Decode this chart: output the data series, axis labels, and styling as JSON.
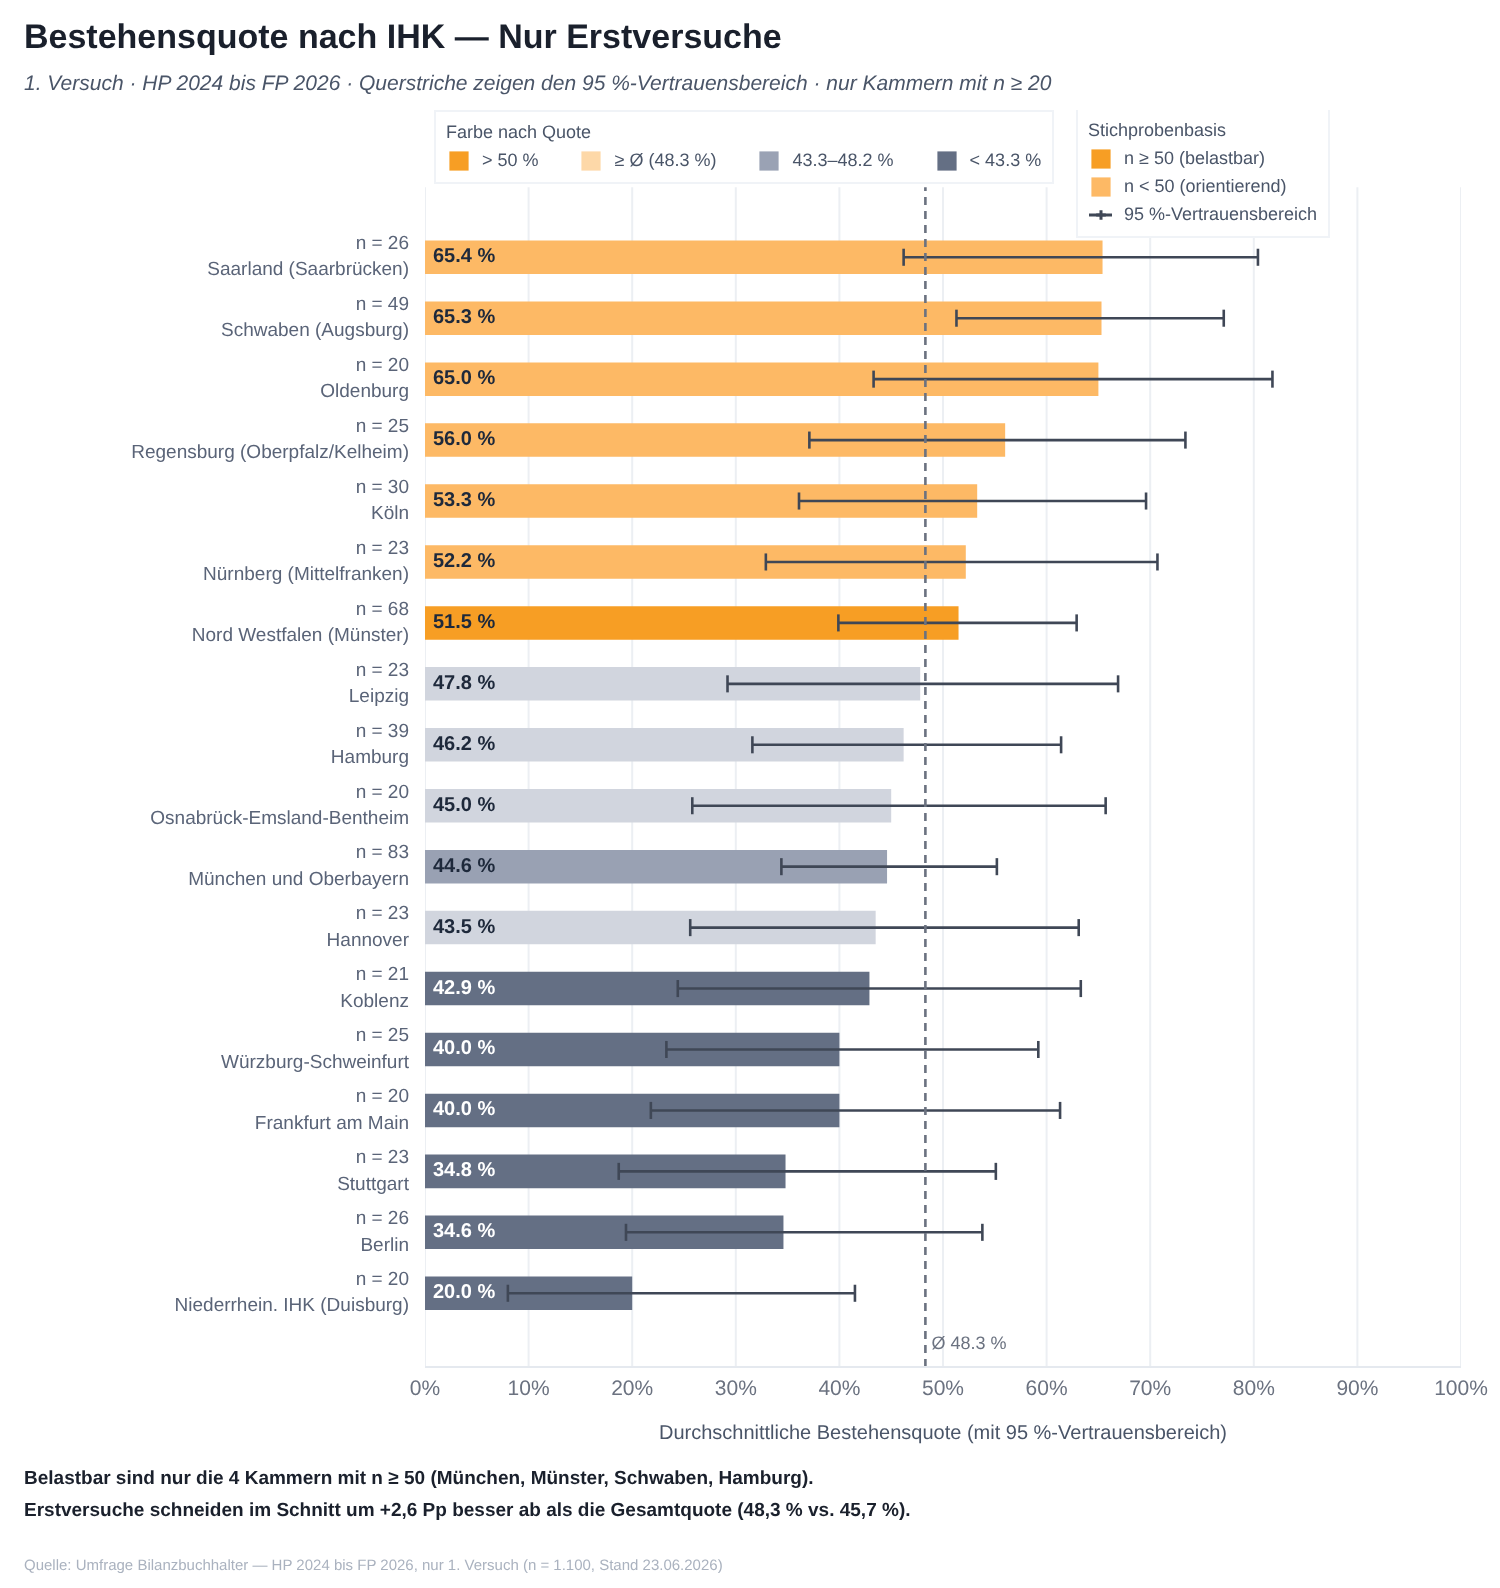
{
  "chart_data": {
    "type": "bar",
    "orientation": "horizontal",
    "title": "Bestehensquote nach IHK — Nur Erstversuche",
    "subtitle": "1. Versuch · HP 2024 bis FP 2026 · Querstriche zeigen den 95 %-Vertrauensbereich · nur Kammern mit n ≥ 20",
    "xlabel": "Durchschnittliche Bestehensquote (mit 95 %-Vertrauensbereich)",
    "legend_title": "Farbe nach Quote",
    "categories": [
      "n = 26\nSaarland (Saarbrücken)",
      "n = 49\nSchwaben (Augsburg)",
      "n = 20\nOldenburg",
      "n = 25\nRegensburg (Oberpfalz/Kelheim)",
      "n = 30\nKöln",
      "n = 23\nNürnberg (Mittelfranken)",
      "n = 68\nNord Westfalen (Münster)",
      "n = 23\nLeipzig",
      "n = 39\nHamburg",
      "n = 20\nOsnabrück-Emsland-Bentheim",
      "n = 83\nMünchen und Oberbayern",
      "n = 23\nHannover",
      "n = 21\nKoblenz",
      "n = 25\nWürzburg-Schweinfurt",
      "n = 20\nFrankfurt am Main",
      "n = 23\nStuttgart",
      "n = 26\nBerlin",
      "n = 20\nNiederrhein. IHK (Duisburg)"
    ],
    "series": [
      {
        "name": "> 50 %",
        "color": "#f79e24",
        "values": [
          65.4,
          65.3,
          65.0,
          56.0,
          53.3,
          52.2,
          51.5,
          null,
          null,
          null,
          null,
          null,
          null,
          null,
          null,
          null,
          null,
          null
        ],
        "colors": [
          "#fdb965",
          "#fdb965",
          "#fdb965",
          "#fdb965",
          "#fdb965",
          "#fdb965",
          "#f79e24",
          null,
          null,
          null,
          null,
          null,
          null,
          null,
          null,
          null,
          null,
          null
        ],
        "errors": [
          [
            46.2,
            80.4
          ],
          [
            51.3,
            77.1
          ],
          [
            43.3,
            81.8
          ],
          [
            37.1,
            73.4
          ],
          [
            36.1,
            69.6
          ],
          [
            32.9,
            70.7
          ],
          [
            39.9,
            62.9
          ],
          null,
          null,
          null,
          null,
          null,
          null,
          null,
          null,
          null,
          null,
          null
        ],
        "value_labels": [
          "65.4 %",
          "65.3 %",
          "65.0 %",
          "56.0 %",
          "53.3 %",
          "52.2 %",
          "51.5 %",
          null,
          null,
          null,
          null,
          null,
          null,
          null,
          null,
          null,
          null,
          null
        ]
      },
      {
        "name": "≥ Ø (48.3 %)",
        "color": "#fdd8a8",
        "values": [
          null,
          null,
          null,
          null,
          null,
          null,
          null,
          null,
          null,
          null,
          null,
          null,
          null,
          null,
          null,
          null,
          null,
          null
        ]
      },
      {
        "name": "43.3–48.2 %",
        "color": "#9aa2b4",
        "values": [
          null,
          null,
          null,
          null,
          null,
          null,
          null,
          47.8,
          46.2,
          45.0,
          44.6,
          43.5,
          null,
          null,
          null,
          null,
          null,
          null
        ],
        "colors": [
          null,
          null,
          null,
          null,
          null,
          null,
          null,
          "#d1d5de",
          "#d1d5de",
          "#d1d5de",
          "#99a1b3",
          "#d1d5de",
          null,
          null,
          null,
          null,
          null,
          null
        ],
        "errors": [
          null,
          null,
          null,
          null,
          null,
          null,
          null,
          [
            29.2,
            66.9
          ],
          [
            31.6,
            61.4
          ],
          [
            25.8,
            65.7
          ],
          [
            34.4,
            55.2
          ],
          [
            25.6,
            63.1
          ],
          null,
          null,
          null,
          null,
          null,
          null
        ],
        "value_labels": [
          null,
          null,
          null,
          null,
          null,
          null,
          null,
          "47.8 %",
          "46.2 %",
          "45.0 %",
          "44.6 %",
          "43.5 %",
          null,
          null,
          null,
          null,
          null,
          null
        ]
      },
      {
        "name": "< 43.3 %",
        "color": "#646f84",
        "values": [
          null,
          null,
          null,
          null,
          null,
          null,
          null,
          null,
          null,
          null,
          null,
          null,
          42.9,
          40.0,
          40.0,
          34.8,
          34.6,
          20.0
        ],
        "colors": [
          null,
          null,
          null,
          null,
          null,
          null,
          null,
          null,
          null,
          null,
          null,
          null,
          "#646f84",
          "#646f84",
          "#646f84",
          "#646f84",
          "#646f84",
          "#646f84"
        ],
        "errors": [
          null,
          null,
          null,
          null,
          null,
          null,
          null,
          null,
          null,
          null,
          null,
          null,
          [
            24.4,
            63.3
          ],
          [
            23.3,
            59.2
          ],
          [
            21.8,
            61.3
          ],
          [
            18.7,
            55.1
          ],
          [
            19.4,
            53.8
          ],
          [
            8.0,
            41.5
          ]
        ],
        "value_labels": [
          null,
          null,
          null,
          null,
          null,
          null,
          null,
          null,
          null,
          null,
          null,
          null,
          "42.9 %",
          "40.0 %",
          "40.0 %",
          "34.8 %",
          "34.6 %",
          "20.0 %"
        ]
      },
      {
        "name": "n ≥ 50 (belastbar)",
        "color": "#f79e24",
        "values": [
          null,
          null,
          null,
          null,
          null,
          null,
          null,
          null,
          null,
          null,
          null,
          null,
          null,
          null,
          null,
          null,
          null,
          null
        ]
      },
      {
        "name": "n < 50 (orientierend)",
        "color": "#fdb965",
        "values": [
          null,
          null,
          null,
          null,
          null,
          null,
          null,
          null,
          null,
          null,
          null,
          null,
          null,
          null,
          null,
          null,
          null,
          null
        ]
      },
      {
        "name": "95 %-Vertrauensbereich",
        "color": "#3f4756",
        "marker": "cross",
        "values": [
          null,
          null,
          null,
          null,
          null,
          null,
          null,
          null,
          null,
          null,
          null,
          null,
          null,
          null,
          null,
          null,
          null,
          null
        ]
      }
    ],
    "xlim": [
      0,
      100
    ],
    "xticks": [
      {
        "value": 0,
        "label": "0%"
      },
      {
        "value": 10,
        "label": "10%"
      },
      {
        "value": 20,
        "label": "20%"
      },
      {
        "value": 30,
        "label": "30%"
      },
      {
        "value": 40,
        "label": "40%"
      },
      {
        "value": 50,
        "label": "50%"
      },
      {
        "value": 60,
        "label": "60%"
      },
      {
        "value": 70,
        "label": "70%"
      },
      {
        "value": 80,
        "label": "80%"
      },
      {
        "value": 90,
        "label": "90%"
      },
      {
        "value": 100,
        "label": "100%"
      }
    ],
    "grid": "x",
    "legend": "top",
    "ref_lines": [
      {
        "axis": "x",
        "value": 48.3,
        "label": "Ø 48.3 %",
        "color": "#6b7280",
        "line_style": "dashed"
      }
    ],
    "annotations": [
      "Stichprobenbasis",
      "Belastbar sind nur die 4 Kammern mit n ≥ 50 (München, Münster, Schwaben, Hamburg).",
      "Erstversuche schneiden im Schnitt um +2,6 Pp besser ab als die Gesamtquote (48,3 % vs. 45,7 %).",
      "Quelle: Umfrage Bilanzbuchhalter — HP 2024 bis FP 2026, nur 1. Versuch (n = 1.100, Stand 23.06.2026)"
    ]
  }
}
